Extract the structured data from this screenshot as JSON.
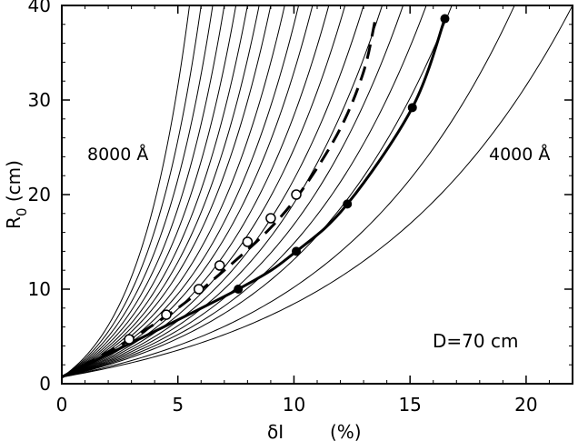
{
  "chart_data": {
    "type": "line",
    "title": "",
    "xlabel": "δI        (%)",
    "ylabel": "R0 (cm)",
    "xlim": [
      0,
      22
    ],
    "ylim": [
      0,
      40
    ],
    "x_ticks": [
      0,
      5,
      10,
      15,
      20
    ],
    "y_ticks": [
      0,
      10,
      20,
      30,
      40
    ],
    "x_tick_labels": [
      "0",
      "5",
      "10",
      "15",
      "20"
    ],
    "y_tick_labels": [
      "0",
      "10",
      "20",
      "30",
      "40"
    ],
    "grid": false,
    "annotations": {
      "left_wavelength": "8000 Å",
      "right_wavelength": "4000 Å",
      "distance": "D=70 cm"
    },
    "family_curves": {
      "description_count": 20,
      "x_at_R0_40": [
        5.5,
        6.0,
        6.5,
        7.0,
        7.5,
        8.0,
        8.5,
        9.0,
        9.6,
        10.2,
        10.8,
        11.5,
        12.2,
        13.0,
        13.8,
        14.7,
        15.7,
        16.8,
        19.5,
        22.0
      ]
    },
    "series": [
      {
        "style": "solid-thick-with-filled-circles",
        "points": [
          {
            "x": 0,
            "y": 0.7
          },
          {
            "x": 7.6,
            "y": 10.0
          },
          {
            "x": 10.1,
            "y": 14.0
          },
          {
            "x": 12.3,
            "y": 19.0
          },
          {
            "x": 15.1,
            "y": 29.2
          },
          {
            "x": 16.5,
            "y": 38.6
          }
        ]
      },
      {
        "style": "dashed-thick",
        "points": [
          {
            "x": 0,
            "y": 0.7
          },
          {
            "x": 2.8,
            "y": 4.5
          },
          {
            "x": 5.0,
            "y": 8.0
          },
          {
            "x": 7.0,
            "y": 12.0
          },
          {
            "x": 9.0,
            "y": 16.5
          },
          {
            "x": 10.5,
            "y": 21.0
          },
          {
            "x": 12.0,
            "y": 27.0
          },
          {
            "x": 13.0,
            "y": 33.0
          },
          {
            "x": 13.5,
            "y": 38.5
          }
        ]
      },
      {
        "style": "open-circles",
        "points": [
          {
            "x": 2.9,
            "y": 4.7
          },
          {
            "x": 4.5,
            "y": 7.3
          },
          {
            "x": 5.9,
            "y": 10.0
          },
          {
            "x": 6.8,
            "y": 12.5
          },
          {
            "x": 8.0,
            "y": 15.0
          },
          {
            "x": 9.0,
            "y": 17.5
          },
          {
            "x": 10.1,
            "y": 20.0
          }
        ]
      }
    ]
  }
}
